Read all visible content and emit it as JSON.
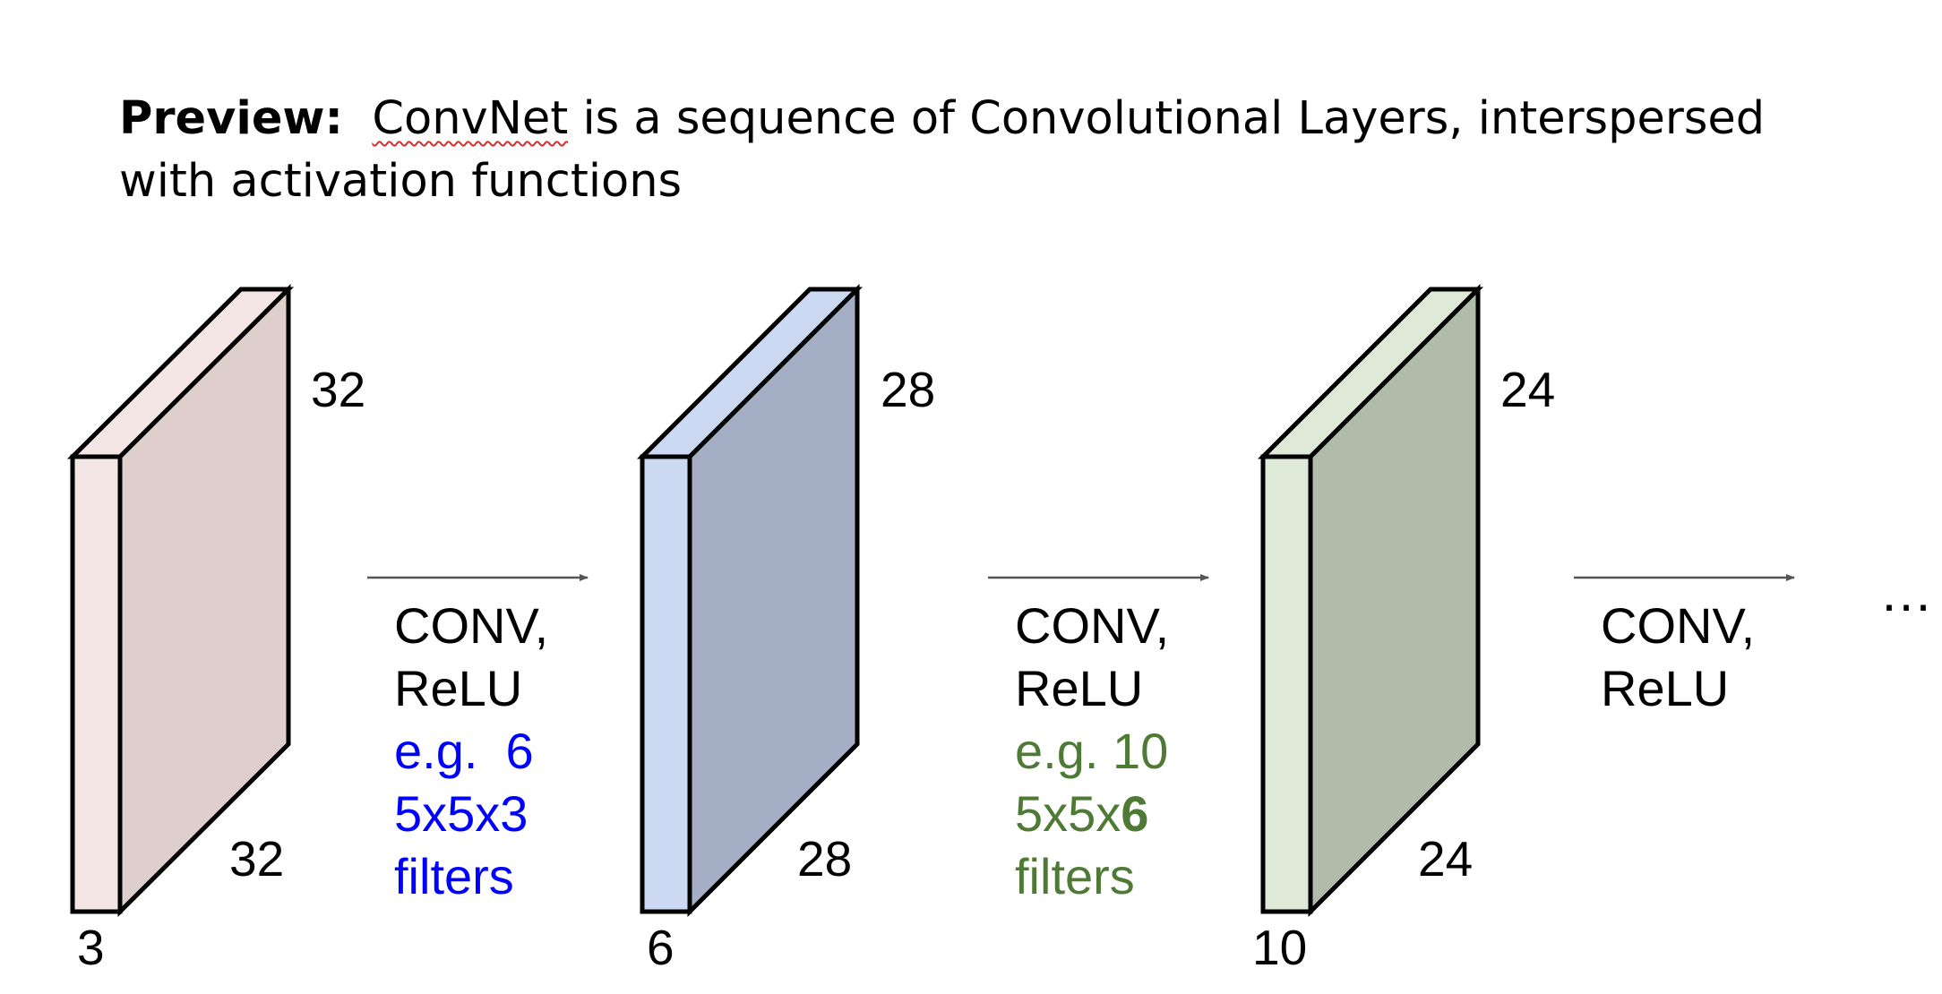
{
  "heading": {
    "lead": "Preview:",
    "spell_word": "ConvNet",
    "rest": " is a sequence of Convolutional Layers, interspersed with activation functions"
  },
  "colors": {
    "volume1_side": "#f5e6e6",
    "volume1_front": "#decfcd",
    "volume2_side": "#cdd9f2",
    "volume2_front": "#a4aec4",
    "volume3_side": "#dfe9d7",
    "volume3_front": "#b0bba9",
    "example_blue": "#0000ff",
    "example_green": "#4e7a35",
    "arrow": "#555555",
    "spellcheck": "#d0312d"
  },
  "volumes": [
    {
      "height": "32",
      "width": "32",
      "depth": "3"
    },
    {
      "height": "28",
      "width": "28",
      "depth": "6"
    },
    {
      "height": "24",
      "width": "24",
      "depth": "10"
    }
  ],
  "operations": [
    {
      "line1": "CONV,",
      "line2": "ReLU",
      "example1": "e.g.  6",
      "example2": "5x5x3",
      "example3": "filters"
    },
    {
      "line1": "CONV,",
      "line2": "ReLU",
      "example1": "e.g. 10",
      "example2_prefix": "5x5x",
      "example2_bold": "6",
      "example3": "filters"
    },
    {
      "line1": "CONV,",
      "line2": "ReLU"
    }
  ],
  "ellipsis": "…"
}
